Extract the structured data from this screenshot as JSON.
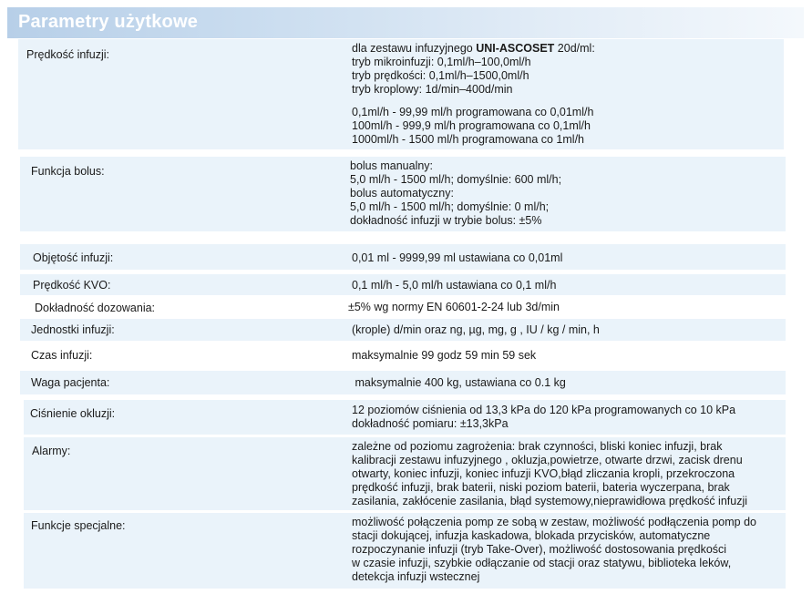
{
  "title": "Parametry użytkowe",
  "rows": [
    {
      "label": "Prędkość infuzji:",
      "lines": [
        {
          "pre": "dla zestawu infuzyjnego ",
          "bold": "UNI-ASCOSET",
          "post": " 20d/ml:"
        },
        "tryb mikroinfuzji: 0,1ml/h–100,0ml/h",
        "tryb prędkości: 0,1ml/h–1500,0ml/h",
        "tryb kroplowy: 1d/min–400d/min"
      ],
      "lines2": [
        "0,1ml/h  - 99,99 ml/h programowana  co  0,01ml/h",
        "100ml/h  - 999,9 ml/h programowana co  0,1ml/h",
        "1000ml/h  - 1500 ml/h programowana co  1ml/h"
      ]
    },
    {
      "label": "Funkcja bolus:",
      "lines": [
        "bolus manualny:",
        "5,0 ml/h - 1500 ml/h; domyślnie: 600 ml/h;",
        "bolus automatyczny:",
        "5,0 ml/h - 1500 ml/h; domyślnie: 0 ml/h;",
        "dokładność infuzji w trybie bolus: ±5%"
      ]
    },
    {
      "label": "Objętość infuzji:",
      "lines": [
        "0,01 ml - 9999,99 ml  ustawiana co 0,01ml"
      ]
    },
    {
      "label": "Prędkość KVO:",
      "lines": [
        "0,1 ml/h - 5,0 ml/h ustawiana co 0,1 ml/h"
      ]
    },
    {
      "label": "Dokładność dozowania:",
      "lines": [
        "±5% wg normy EN 60601-2-24   lub    3d/min"
      ]
    },
    {
      "label": "Jednostki infuzji:",
      "lines": [
        "(krople) d/min oraz ng, µg, mg, g , IU / kg / min, h"
      ]
    },
    {
      "label": "Czas infuzji:",
      "lines": [
        "maksymalnie 99 godz 59 min 59 sek"
      ]
    },
    {
      "label": "Waga pacjenta:",
      "lines": [
        " maksymalnie 400 kg, ustawiana co 0.1 kg"
      ]
    },
    {
      "label": "Ciśnienie okluzji:",
      "lines": [
        "12 poziomów ciśnienia od 13,3 kPa do 120 kPa programowanych co 10 kPa",
        "dokładność pomiaru: ±13,3kPa"
      ]
    },
    {
      "label": "Alarmy:",
      "lines": [
        "zależne od poziomu zagrożenia: brak czynności, bliski koniec infuzji, brak",
        "kalibracji zestawu infuzyjnego , okluzja,powietrze, otwarte drzwi, zacisk drenu",
        "otwarty, koniec infuzji, koniec infuzji KVO,błąd zliczania kropli, przekroczona",
        "prędkość infuzji, brak baterii, niski poziom baterii, bateria wyczerpana, brak",
        "zasilania, zakłócenie zasilania, błąd systemowy,nieprawidłowa prędkość infuzji"
      ]
    },
    {
      "label": "Funkcje specjalne:",
      "lines": [
        "możliwość połączenia pomp ze sobą w zestaw, możliwość podłączenia pomp do",
        "stacji dokującej, infuzja kaskadowa, blokada przycisków, automatyczne",
        "rozpoczynanie infuzji (tryb Take-Over), możliwość dostosowania prędkości",
        "w czasie infuzji, szybkie odłączanie od stacji oraz statywu, biblioteka leków,",
        "detekcja infuzji wstecznej"
      ]
    }
  ]
}
